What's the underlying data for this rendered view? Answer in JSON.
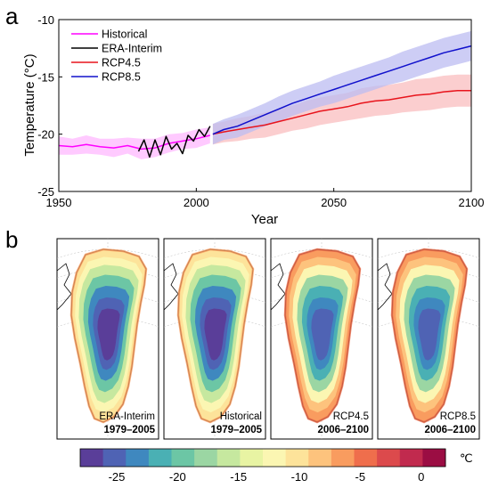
{
  "panel_labels": [
    "a",
    "b"
  ],
  "chart_data": {
    "type": "line",
    "xlabel": "Year",
    "ylabel": "Temperature (°C)",
    "xlim": [
      1950,
      2100
    ],
    "ylim": [
      -25,
      -10
    ],
    "x_ticks": [
      1950,
      2000,
      2050,
      2100
    ],
    "y_ticks": [
      -25,
      -20,
      -15,
      -10
    ],
    "grid": false,
    "legend_position": "top-left",
    "series": [
      {
        "name": "Historical",
        "color": "#ff00ff",
        "x": [
          1950,
          1955,
          1960,
          1965,
          1970,
          1975,
          1980,
          1985,
          1990,
          1995,
          2000,
          2005
        ],
        "y": [
          -21.0,
          -21.1,
          -20.9,
          -21.1,
          -21.2,
          -21.0,
          -21.3,
          -21.2,
          -20.8,
          -20.6,
          -20.4,
          -20.1
        ],
        "band": [
          0.8,
          0.7,
          0.8,
          0.7,
          0.8,
          0.7,
          0.9,
          0.8,
          0.8,
          0.7,
          0.8,
          0.7
        ]
      },
      {
        "name": "ERA-Interim",
        "color": "#000000",
        "x": [
          1979,
          1981,
          1983,
          1985,
          1987,
          1989,
          1991,
          1993,
          1995,
          1997,
          1999,
          2001,
          2003,
          2005
        ],
        "y": [
          -21.5,
          -20.5,
          -22.0,
          -20.5,
          -21.8,
          -20.2,
          -21.3,
          -20.8,
          -21.7,
          -20.1,
          -20.6,
          -19.6,
          -20.2,
          -19.3
        ]
      },
      {
        "name": "RCP4.5",
        "color": "#e8141c",
        "x": [
          2006,
          2010,
          2015,
          2020,
          2025,
          2030,
          2035,
          2040,
          2045,
          2050,
          2055,
          2060,
          2065,
          2070,
          2075,
          2080,
          2085,
          2090,
          2095,
          2100
        ],
        "y": [
          -20.0,
          -19.8,
          -19.6,
          -19.4,
          -19.2,
          -18.9,
          -18.6,
          -18.3,
          -18.0,
          -17.8,
          -17.6,
          -17.3,
          -17.1,
          -17.0,
          -16.8,
          -16.6,
          -16.5,
          -16.3,
          -16.2,
          -16.2
        ],
        "band": [
          0.9,
          0.9,
          1.0,
          1.0,
          1.1,
          1.1,
          1.1,
          1.2,
          1.2,
          1.2,
          1.2,
          1.3,
          1.3,
          1.3,
          1.3,
          1.4,
          1.4,
          1.4,
          1.4,
          1.4
        ]
      },
      {
        "name": "RCP8.5",
        "color": "#1010cc",
        "x": [
          2006,
          2010,
          2015,
          2020,
          2025,
          2030,
          2035,
          2040,
          2045,
          2050,
          2055,
          2060,
          2065,
          2070,
          2075,
          2080,
          2085,
          2090,
          2095,
          2100
        ],
        "y": [
          -20.0,
          -19.6,
          -19.3,
          -18.8,
          -18.3,
          -17.8,
          -17.3,
          -16.9,
          -16.5,
          -16.1,
          -15.7,
          -15.3,
          -14.9,
          -14.5,
          -14.1,
          -13.7,
          -13.3,
          -12.9,
          -12.6,
          -12.3
        ],
        "band": [
          0.9,
          0.9,
          1.0,
          1.0,
          1.0,
          1.1,
          1.1,
          1.1,
          1.1,
          1.2,
          1.2,
          1.2,
          1.2,
          1.2,
          1.3,
          1.3,
          1.3,
          1.3,
          1.3,
          1.3
        ]
      }
    ]
  },
  "maps": [
    {
      "label": "ERA-Interim",
      "period": "1979–2005"
    },
    {
      "label": "Historical",
      "period": "1979–2005"
    },
    {
      "label": "RCP4.5",
      "period": "2006–2100"
    },
    {
      "label": "RCP8.5",
      "period": "2006–2100"
    }
  ],
  "colorbar": {
    "unit": "℃",
    "tick_labels": [
      "-25",
      "-20",
      "-15",
      "-10",
      "-5",
      "0"
    ],
    "tick_values": [
      -25,
      -20,
      -15,
      -10,
      -5,
      0
    ],
    "range": [
      -28,
      2
    ],
    "colors": [
      "#5a3e99",
      "#4f63b4",
      "#3f88bf",
      "#4ab0b4",
      "#6cc6a5",
      "#9bd6a3",
      "#c6e89f",
      "#e8f4a3",
      "#fbf6b2",
      "#fde39a",
      "#fdc37d",
      "#f99c5f",
      "#ef6e4c",
      "#dc4a4c",
      "#c12a4e",
      "#9b0d43"
    ]
  }
}
